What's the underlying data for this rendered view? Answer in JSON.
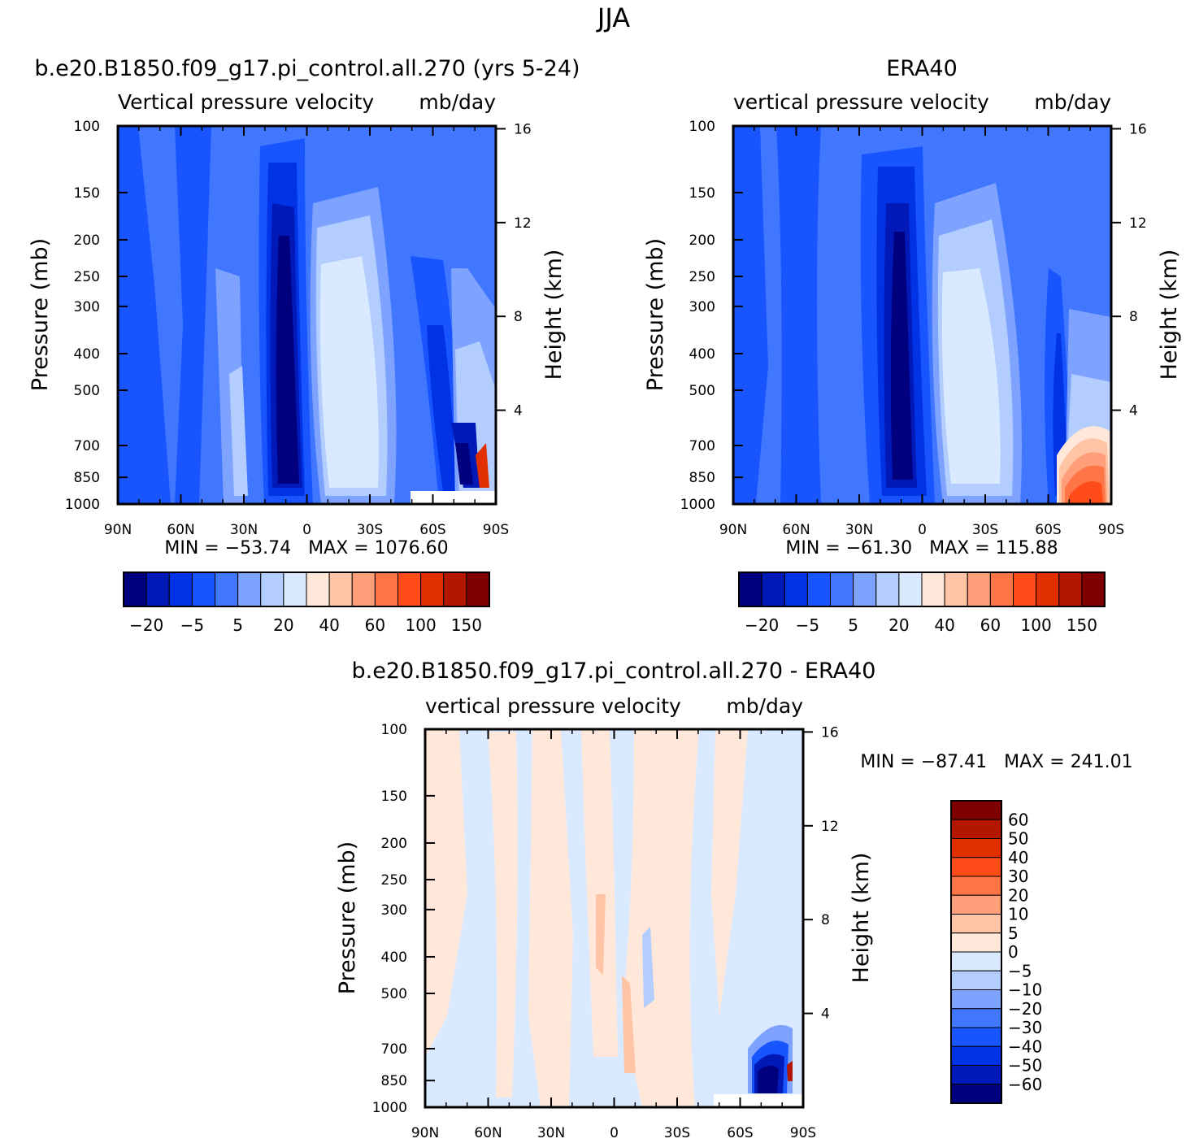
{
  "page": {
    "title": "JJA"
  },
  "chart_data": [
    {
      "type": "heatmap",
      "panel": "model",
      "title": "b.e20.B1850.f09_g17.pi_control.all.270 (yrs 5-24)",
      "subtitle_left": "Vertical pressure velocity",
      "subtitle_right": "mb/day",
      "ylabel": "Pressure (mb)",
      "ylabel_right": "Height (km)",
      "x_ticks": [
        "90N",
        "60N",
        "30N",
        "0",
        "30S",
        "60S",
        "90S"
      ],
      "y_ticks": [
        "100",
        "150",
        "200",
        "250",
        "300",
        "400",
        "500",
        "700",
        "850",
        "1000"
      ],
      "y_right_ticks": [
        "4",
        "8",
        "12",
        "16"
      ],
      "stats": "MIN = -53.74   MAX = 1076.60",
      "min": -53.74,
      "max": 1076.6,
      "colorbar_labels": [
        "-20",
        "-5",
        "5",
        "20",
        "40",
        "60",
        "100",
        "150"
      ],
      "features": [
        {
          "lat": -8,
          "p_top": 200,
          "p_bot": 1000,
          "level": 0,
          "note": "strong ascent core near 10N"
        },
        {
          "lat": 22,
          "p_top": 280,
          "p_bot": 950,
          "level": 6,
          "note": "subsidence near 20S"
        },
        {
          "lat": 85,
          "p_top": 700,
          "p_bot": 900,
          "level": 12,
          "note": "positive maximum near 85S"
        }
      ]
    },
    {
      "type": "heatmap",
      "panel": "obs",
      "title": "ERA40",
      "subtitle_left": "vertical pressure velocity",
      "subtitle_right": "mb/day",
      "ylabel": "Pressure (mb)",
      "ylabel_right": "Height (km)",
      "x_ticks": [
        "90N",
        "60N",
        "30N",
        "0",
        "30S",
        "60S",
        "90S"
      ],
      "y_ticks": [
        "100",
        "150",
        "200",
        "250",
        "300",
        "400",
        "500",
        "700",
        "850",
        "1000"
      ],
      "y_right_ticks": [
        "4",
        "8",
        "12",
        "16"
      ],
      "stats": "MIN = -61.30   MAX = 115.88",
      "min": -61.3,
      "max": 115.88,
      "colorbar_labels": [
        "-20",
        "-5",
        "5",
        "20",
        "40",
        "60",
        "100",
        "150"
      ],
      "features": [
        {
          "lat": -8,
          "p_top": 190,
          "p_bot": 1000,
          "level": 0,
          "note": "strong ascent core near 10N"
        },
        {
          "lat": 20,
          "p_top": 300,
          "p_bot": 950,
          "level": 6,
          "note": "subsidence near 20S"
        },
        {
          "lat": 80,
          "p_top": 650,
          "p_bot": 1000,
          "level": 11,
          "note": "positive region 65S-90S"
        }
      ]
    },
    {
      "type": "heatmap",
      "panel": "diff",
      "title": "b.e20.B1850.f09_g17.pi_control.all.270 - ERA40",
      "subtitle_left": "vertical pressure velocity",
      "subtitle_right": "mb/day",
      "ylabel": "Pressure (mb)",
      "ylabel_right": "Height (km)",
      "x_ticks": [
        "90N",
        "60N",
        "30N",
        "0",
        "30S",
        "60S",
        "90S"
      ],
      "y_ticks": [
        "100",
        "150",
        "200",
        "250",
        "300",
        "400",
        "500",
        "700",
        "850",
        "1000"
      ],
      "y_right_ticks": [
        "4",
        "8",
        "12",
        "16"
      ],
      "stats": "MIN = -87.41   MAX = 241.01",
      "min": -87.41,
      "max": 241.01,
      "colorbar_labels": [
        "60",
        "50",
        "40",
        "30",
        "20",
        "10",
        "5",
        "0",
        "-5",
        "-10",
        "-20",
        "-30",
        "-40",
        "-50",
        "-60"
      ],
      "features": [
        {
          "lat": 75,
          "p_top": 750,
          "p_bot": 950,
          "level": -60,
          "note": "negative minimum near 75S"
        }
      ]
    }
  ],
  "colors": {
    "main_scale": [
      "#00007f",
      "#0019b7",
      "#0033e5",
      "#1955ff",
      "#4177ff",
      "#7ea3ff",
      "#b3cdff",
      "#d9e9ff",
      "#ffe8d9",
      "#ffc4a5",
      "#ff9e78",
      "#ff7546",
      "#ff4c19",
      "#e22f00",
      "#b31700",
      "#7f0000"
    ],
    "diff_scale": [
      "#7f0000",
      "#b31700",
      "#e22f00",
      "#ff4c19",
      "#ff7546",
      "#ff9e78",
      "#ffc4a5",
      "#ffe8d9",
      "#d9e9ff",
      "#b3cdff",
      "#7ea3ff",
      "#4177ff",
      "#1955ff",
      "#0033e5",
      "#0019b7",
      "#00007f"
    ]
  }
}
